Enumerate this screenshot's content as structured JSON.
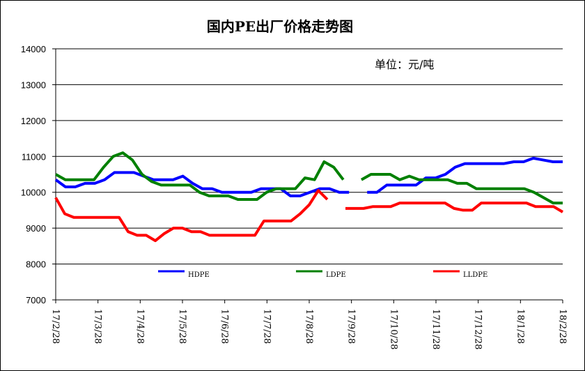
{
  "chart_data": {
    "type": "line",
    "title": "国内PE出厂价格走势图",
    "unit_label": "单位：元/吨",
    "ylim": [
      7000,
      14000
    ],
    "yticks": [
      7000,
      8000,
      9000,
      10000,
      11000,
      12000,
      13000,
      14000
    ],
    "x_tick_labels": [
      "17/2/28",
      "17/3/28",
      "17/4/28",
      "17/5/28",
      "17/6/28",
      "17/7/28",
      "17/8/28",
      "17/9/28",
      "17/10/28",
      "17/11/28",
      "17/12/28",
      "18/1/28",
      "18/2/28"
    ],
    "grid": "horizontal",
    "legend_position": "bottom",
    "gap_after_index": 30,
    "series": [
      {
        "name": "HDPE",
        "color": "#0000ff",
        "values": [
          10350,
          10150,
          10150,
          10250,
          10250,
          10350,
          10550,
          10550,
          10550,
          10450,
          10350,
          10350,
          10350,
          10450,
          10250,
          10100,
          10100,
          10000,
          10000,
          10000,
          10000,
          10100,
          10100,
          10100,
          9900,
          9900,
          10000,
          10100,
          10100,
          10000,
          10000,
          10000,
          10000,
          10200,
          10200,
          10200,
          10200,
          10400,
          10400,
          10500,
          10700,
          10800,
          10800,
          10800,
          10800,
          10800,
          10850,
          10850,
          10950,
          10900,
          10850,
          10850
        ]
      },
      {
        "name": "LDPE",
        "color": "#008000",
        "values": [
          10500,
          10350,
          10350,
          10350,
          10350,
          10700,
          11000,
          11100,
          10900,
          10500,
          10300,
          10200,
          10200,
          10200,
          10200,
          10000,
          9900,
          9900,
          9900,
          9800,
          9800,
          9800,
          10000,
          10100,
          10100,
          10100,
          10400,
          10350,
          10850,
          10700,
          10350,
          10350,
          10500,
          10500,
          10500,
          10350,
          10450,
          10350,
          10350,
          10350,
          10350,
          10250,
          10250,
          10100,
          10100,
          10100,
          10100,
          10100,
          10100,
          10000,
          9850,
          9700,
          9700
        ]
      },
      {
        "name": "LLDPE",
        "color": "#ff0000",
        "values": [
          9850,
          9400,
          9300,
          9300,
          9300,
          9300,
          9300,
          9300,
          8900,
          8800,
          8800,
          8650,
          8850,
          9000,
          9000,
          8900,
          8900,
          8800,
          8800,
          8800,
          8800,
          8800,
          8800,
          9200,
          9200,
          9200,
          9200,
          9400,
          9650,
          10050,
          9800,
          9550,
          9550,
          9550,
          9600,
          9600,
          9600,
          9700,
          9700,
          9700,
          9700,
          9700,
          9700,
          9550,
          9500,
          9500,
          9700,
          9700,
          9700,
          9700,
          9700,
          9700,
          9600,
          9600,
          9600,
          9450
        ]
      }
    ]
  }
}
